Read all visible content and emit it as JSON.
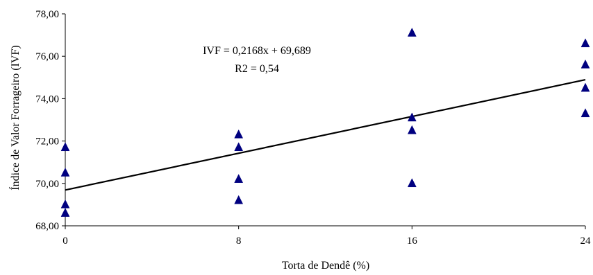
{
  "chart_data": {
    "type": "scatter",
    "xlabel": "Torta de Dendê (%)",
    "ylabel": "Índice de Valor Forrageiro (IVF)",
    "xlim": [
      0,
      24
    ],
    "ylim": [
      68,
      78
    ],
    "x_ticks": [
      0,
      8,
      16,
      24
    ],
    "x_tick_labels": [
      "0",
      "8",
      "16",
      "24"
    ],
    "y_ticks": [
      68,
      70,
      72,
      74,
      76,
      78
    ],
    "y_tick_labels": [
      "68,00",
      "70,00",
      "72,00",
      "74,00",
      "76,00",
      "78,00"
    ],
    "grid": false,
    "legend": "none",
    "series": [
      {
        "marker": "triangle",
        "color": "#000080",
        "points": [
          {
            "x": 0,
            "y": 71.7
          },
          {
            "x": 0,
            "y": 70.5
          },
          {
            "x": 0,
            "y": 69.0
          },
          {
            "x": 0,
            "y": 68.6
          },
          {
            "x": 8,
            "y": 72.3
          },
          {
            "x": 8,
            "y": 71.7
          },
          {
            "x": 8,
            "y": 70.2
          },
          {
            "x": 8,
            "y": 69.2
          },
          {
            "x": 16,
            "y": 77.1
          },
          {
            "x": 16,
            "y": 73.1
          },
          {
            "x": 16,
            "y": 72.5
          },
          {
            "x": 16,
            "y": 70.0
          },
          {
            "x": 24,
            "y": 76.6
          },
          {
            "x": 24,
            "y": 75.6
          },
          {
            "x": 24,
            "y": 74.5
          },
          {
            "x": 24,
            "y": 73.3
          }
        ]
      }
    ],
    "trendline": {
      "slope": 0.2168,
      "intercept": 69.689,
      "color": "#000000"
    },
    "annotations": {
      "equation": "IVF = 0,2168x + 69,689",
      "r2": "R2 = 0,54"
    }
  }
}
